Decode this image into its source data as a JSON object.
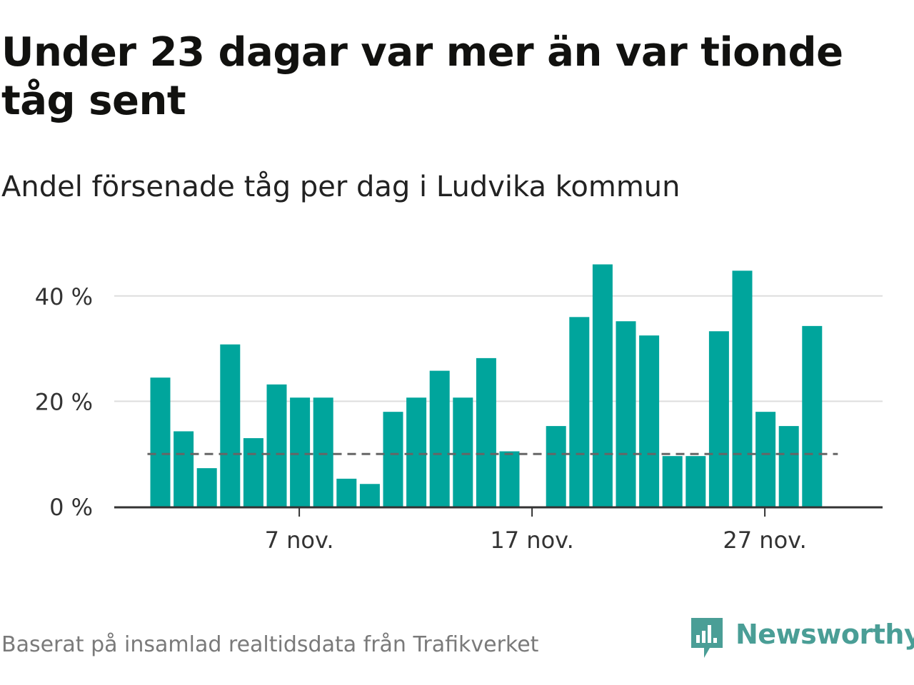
{
  "title": "Under 23 dagar var mer än var tionde tåg sent",
  "subtitle": "Andel försenade tåg per dag i Ludvika kommun",
  "source": "Baserat på insamlad realtidsdata från Trafikverket",
  "brand": {
    "name": "Newsworthy",
    "logo_icon": "bar-chart-speech-bubble-icon"
  },
  "colors": {
    "bar": "#00a59c",
    "reference_line": "#666666",
    "gridline": "#dddddd",
    "axis": "#333333",
    "brand": "#4a9e96"
  },
  "chart_data": {
    "type": "bar",
    "x_unit": "day of November",
    "x": [
      1,
      2,
      3,
      4,
      5,
      6,
      7,
      8,
      9,
      10,
      11,
      12,
      13,
      14,
      15,
      16,
      17,
      18,
      19,
      20,
      21,
      22,
      23,
      24,
      25,
      26,
      27,
      28,
      29
    ],
    "values": [
      24.5,
      14.3,
      7.3,
      30.8,
      13.0,
      23.2,
      20.7,
      20.7,
      5.3,
      4.3,
      18.0,
      20.7,
      25.8,
      20.7,
      28.2,
      10.5,
      null,
      15.3,
      36.0,
      46.0,
      35.2,
      32.5,
      9.6,
      9.6,
      33.3,
      44.8,
      18.0,
      15.3,
      34.3
    ],
    "reference_line": {
      "value": 10,
      "style": "dashed"
    },
    "ylim": [
      0,
      48
    ],
    "y_ticks": [
      0,
      20,
      40
    ],
    "y_tick_labels": [
      "0 %",
      "20 %",
      "40 %"
    ],
    "x_ticks": [
      7,
      17,
      27
    ],
    "x_tick_labels": [
      "7 nov.",
      "17 nov.",
      "27 nov."
    ],
    "grid": true,
    "legend": "none"
  }
}
